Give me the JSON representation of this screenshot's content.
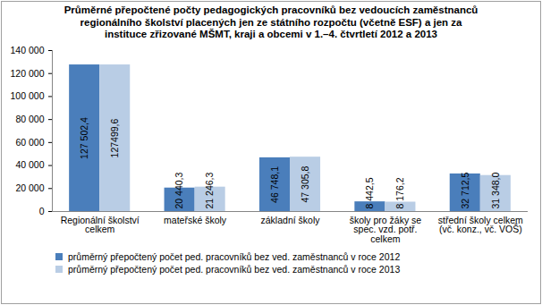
{
  "chart_data": {
    "type": "bar",
    "title": "Průměrné přepočtené počty pedagogických pracovníků bez vedoucích zaměstnanců regionálního školství placených jen ze státního rozpočtu (včetně ESF) a jen za instituce zřizované MŠMT, kraji a obcemi v 1.–4. čtvrtletí 2012 a 2013",
    "categories": [
      "Regionální školství celkem",
      "mateřské školy",
      "základní školy",
      "školy pro žáky se spec. vzd. potř. celkem",
      "střední školy celkem (vč. konz., vč. VOŠ)"
    ],
    "series": [
      {
        "name": "průměrný přepočtený počet ped. pracovníků bez ved. zaměstnanců v roce 2012",
        "color": "#4a7ebb",
        "values": [
          127502.4,
          20440.3,
          46748.1,
          8442.5,
          32712.5
        ],
        "value_labels": [
          "127 502,4",
          "20 440,3",
          "46 748,1",
          "8 442,5",
          "32 712,5"
        ]
      },
      {
        "name": "průměrný přepočtený počet ped. pracovníků bez ved. zaměstnanců v roce 2013",
        "color": "#b9cde5",
        "values": [
          127499.6,
          21246.3,
          47305.8,
          8176.2,
          31348.0
        ],
        "value_labels": [
          "127499,6",
          "21 246,3",
          "47 305,8",
          "8 176,2",
          "31 348,0"
        ]
      }
    ],
    "ylim": [
      0,
      140000
    ],
    "yticks": [
      0,
      {
        "value": 20000,
        "label": "20 000"
      },
      {
        "value": 40000,
        "label": "40 000"
      },
      {
        "value": 60000,
        "label": "60 000"
      },
      {
        "value": 80000,
        "label": "80 000"
      },
      {
        "value": 100000,
        "label": "100 000"
      },
      {
        "value": 120000,
        "label": "120 000"
      },
      {
        "value": 140000,
        "label": "140 000"
      }
    ],
    "grid": false,
    "data_labels": true,
    "legend": "bottom"
  }
}
